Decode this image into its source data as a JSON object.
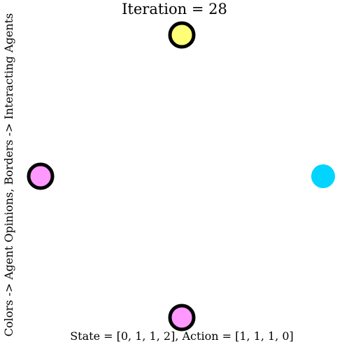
{
  "title": "Iteration = 28",
  "xlabel": "State = [0, 1, 1, 2], Action = [1, 1, 1, 0]",
  "ylabel": "Colors -> Agent Opinions, Borders -> Interacting Agents",
  "opinion_colors": {
    "0": "#00d4ff",
    "1": "#ff99ff",
    "2": "#ffff77"
  },
  "agents": [
    {
      "id": 0,
      "position": "right",
      "opinion": 0,
      "interacting": false
    },
    {
      "id": 1,
      "position": "bottom",
      "opinion": 1,
      "interacting": true
    },
    {
      "id": 2,
      "position": "left",
      "opinion": 1,
      "interacting": true
    },
    {
      "id": 3,
      "position": "top",
      "opinion": 2,
      "interacting": true
    }
  ]
}
